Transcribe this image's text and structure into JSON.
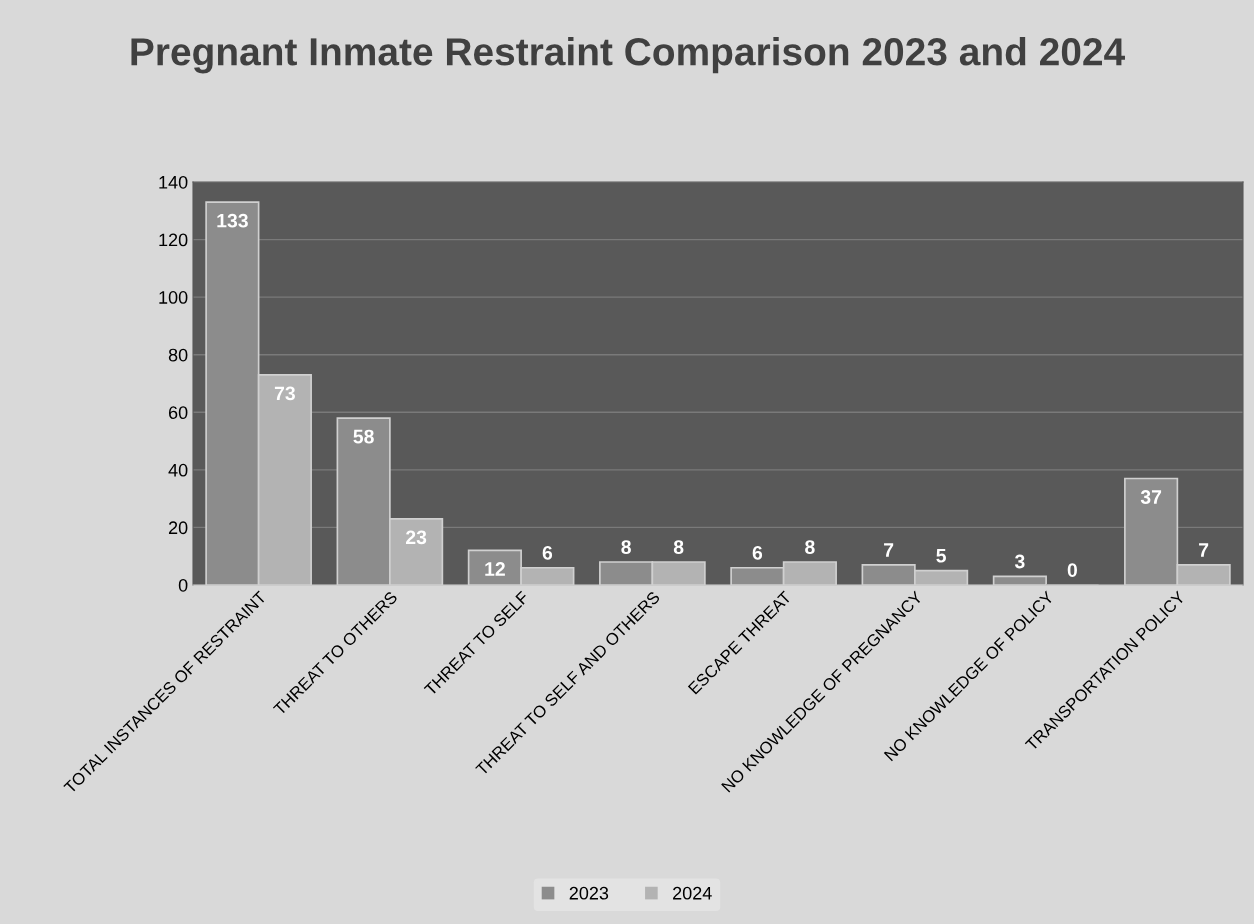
{
  "chart_data": {
    "type": "bar",
    "title": "Pregnant Inmate Restraint Comparison 2023 and 2024",
    "categories": [
      "TOTAL INSTANCES OF RESTRAINT",
      "THREAT TO OTHERS",
      "THREAT TO SELF",
      "THREAT TO SELF AND OTHERS",
      "ESCAPE THREAT",
      "NO KNOWLEDGE OF PREGNANCY",
      "NO KNOWLEDGE OF POLICY",
      "TRANSPORTATION POLICY"
    ],
    "series": [
      {
        "name": "2023",
        "color": "#8c8c8c",
        "values": [
          133,
          58,
          12,
          8,
          6,
          7,
          3,
          37
        ]
      },
      {
        "name": "2024",
        "color": "#b3b3b3",
        "values": [
          73,
          23,
          6,
          8,
          8,
          5,
          0,
          7
        ]
      }
    ],
    "ylim": [
      0,
      140
    ],
    "yticks": [
      0,
      20,
      40,
      60,
      80,
      100,
      120,
      140
    ],
    "grid": "y",
    "legend": "bottom",
    "data_labels": true
  }
}
